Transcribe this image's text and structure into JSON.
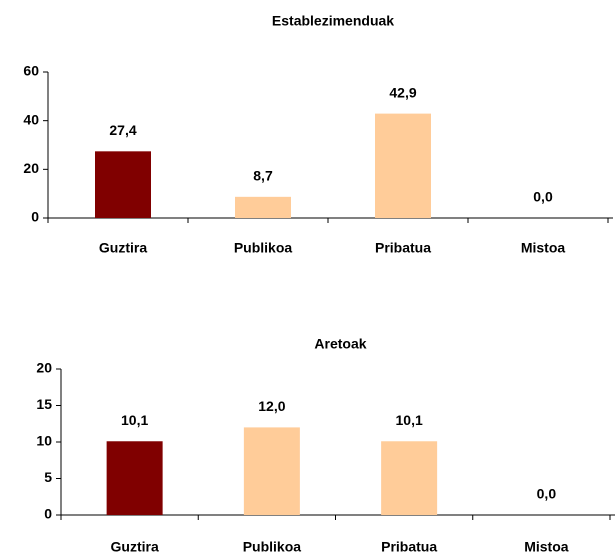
{
  "chart_data": [
    {
      "type": "bar",
      "title": "Establezimenduak",
      "categories": [
        "Guztira",
        "Publikoa",
        "Pribatua",
        "Mistoa"
      ],
      "values": [
        27.4,
        8.7,
        42.9,
        0.0
      ],
      "value_labels": [
        "27,4",
        "8,7",
        "42,9",
        "0,0"
      ],
      "colors": [
        "#800000",
        "#ffcc99",
        "#ffcc99",
        "#ffcc99"
      ],
      "ylim": [
        0,
        60
      ],
      "yticks": [
        0,
        20,
        40,
        60
      ],
      "grid": false
    },
    {
      "type": "bar",
      "title": "Aretoak",
      "categories": [
        "Guztira",
        "Publikoa",
        "Pribatua",
        "Mistoa"
      ],
      "values": [
        10.1,
        12.0,
        10.1,
        0.0
      ],
      "value_labels": [
        "10,1",
        "12,0",
        "10,1",
        "0,0"
      ],
      "colors": [
        "#800000",
        "#ffcc99",
        "#ffcc99",
        "#ffcc99"
      ],
      "ylim": [
        0,
        20
      ],
      "yticks": [
        0,
        5,
        10,
        15,
        20
      ],
      "grid": false
    }
  ]
}
